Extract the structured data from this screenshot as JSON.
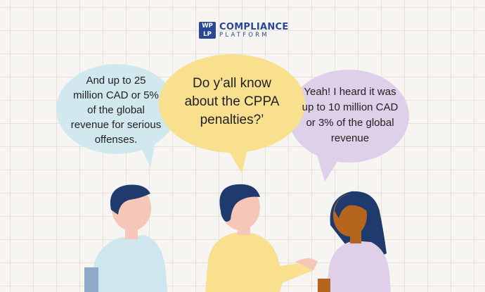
{
  "logo": {
    "mark": [
      "WP",
      "LP"
    ],
    "line1": "COMPLIANCE",
    "line2": "PLATFORM",
    "color": "#2a4694"
  },
  "bubbles": {
    "left": {
      "lines": [
        "And up to 25",
        "million CAD or 5%",
        "of the global",
        "revenue for serious",
        "offenses."
      ],
      "color": "#d2e8ef"
    },
    "middle": {
      "lines": [
        "Do y’all know",
        "about the CPPA",
        "penalties?’"
      ],
      "color": "#f8e08e"
    },
    "right": {
      "lines": [
        "Yeah! I heard it was",
        "up to 10 million CAD",
        "or 3% of the global",
        "revenue"
      ],
      "color": "#ddd0e8"
    }
  },
  "colors": {
    "background": "#f7f5f2",
    "hair": "#1f3b6e",
    "skin_light": "#f6c6b9",
    "skin_dark": "#b5651d",
    "shirt_left": "#cfe6ef",
    "shirt_middle": "#f8e08e",
    "shirt_right": "#ddd0e8"
  }
}
